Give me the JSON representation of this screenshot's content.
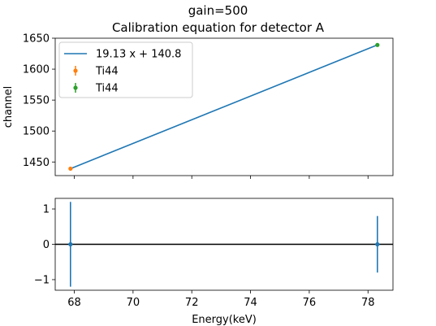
{
  "chart_data": [
    {
      "type": "line",
      "title": "gain=500",
      "subtitle": "Calibration equation for detector A",
      "xlabel": "",
      "ylabel": "channel",
      "xlim": [
        67.35,
        78.85
      ],
      "ylim": [
        1428,
        1650
      ],
      "x_ticks": [
        68,
        70,
        72,
        74,
        76,
        78
      ],
      "y_ticks": [
        1450,
        1500,
        1550,
        1600,
        1650
      ],
      "x_tick_labels_visible": false,
      "legend_position": "upper-left",
      "grid": false,
      "series": [
        {
          "name": "19.13 x + 140.8",
          "kind": "line",
          "color": "#1f77b4",
          "x": [
            67.87,
            78.32
          ],
          "y": [
            1439.2,
            1639.1
          ]
        },
        {
          "name": "Ti44",
          "kind": "errorbar",
          "color": "#ff7f0e",
          "x": [
            67.87
          ],
          "y": [
            1439.2
          ],
          "yerr": [
            0
          ]
        },
        {
          "name": "Ti44",
          "kind": "errorbar",
          "color": "#2ca02c",
          "x": [
            78.32
          ],
          "y": [
            1639.1
          ],
          "yerr": [
            0
          ]
        }
      ]
    },
    {
      "type": "scatter",
      "title": "",
      "xlabel": "Energy(keV)",
      "ylabel": "",
      "xlim": [
        67.35,
        78.85
      ],
      "ylim": [
        -1.3,
        1.3
      ],
      "x_ticks": [
        68,
        70,
        72,
        74,
        76,
        78
      ],
      "y_ticks": [
        -1,
        0,
        1
      ],
      "y_tick_labels": [
        "−1",
        "0",
        "1"
      ],
      "grid": false,
      "reference_line": {
        "y": 0,
        "color": "#000000"
      },
      "series": [
        {
          "name": "",
          "kind": "errorbar",
          "color": "#1f77b4",
          "x": [
            67.87,
            78.32
          ],
          "y": [
            0,
            0
          ],
          "yerr": [
            1.2,
            0.8
          ]
        }
      ]
    }
  ]
}
